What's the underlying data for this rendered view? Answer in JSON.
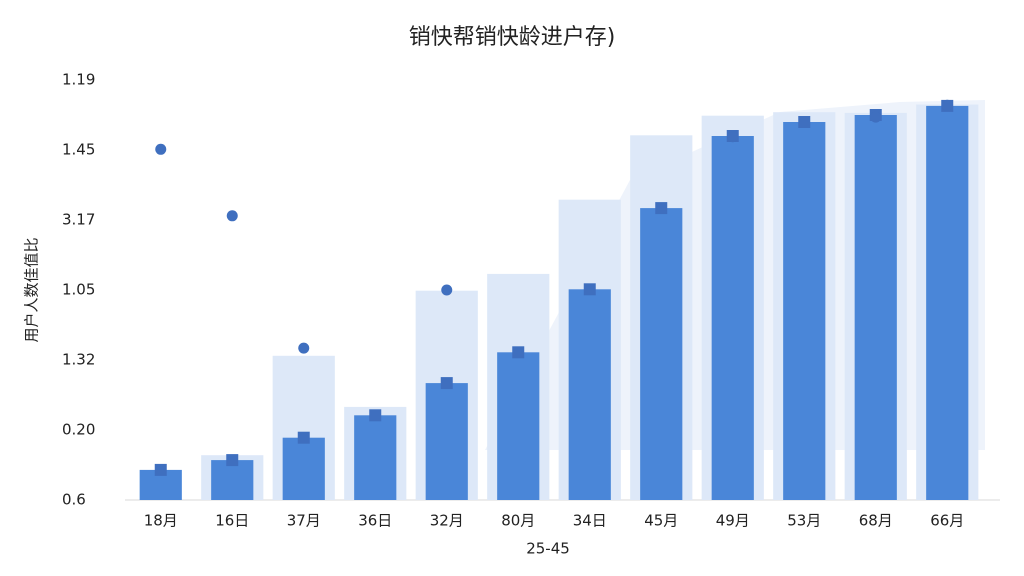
{
  "chart_data": {
    "type": "bar",
    "title": "销快帮销快龄进户存)",
    "x_label": "25-45",
    "y_label": "用户人数佳值比",
    "categories": [
      "18月",
      "16日",
      "37月",
      "36日",
      "32月",
      "80月",
      "34日",
      "45月",
      "49月",
      "53月",
      "68月",
      "66月"
    ],
    "series": [
      {
        "color": "#dde8f8",
        "values": [
          null,
          0.64,
          2.06,
          1.33,
          2.99,
          3.23,
          4.29,
          5.21,
          5.49,
          5.54,
          5.53,
          5.65
        ]
      },
      {
        "color": "#4a86d8",
        "values": [
          0.43,
          0.57,
          0.89,
          1.21,
          1.67,
          2.11,
          3.01,
          4.17,
          5.2,
          5.4,
          5.5,
          5.63
        ]
      },
      {
        "color": "#3f6fbf",
        "marker": true,
        "values": [
          5.01,
          4.06,
          2.17,
          null,
          3.0,
          null,
          null,
          null,
          5.19,
          null,
          5.47,
          5.64
        ]
      }
    ],
    "ylim": [
      0,
      6
    ],
    "yticks": [
      {
        "value": 0,
        "label": "0.6"
      },
      {
        "value": 1,
        "label": "0.20"
      },
      {
        "value": 2,
        "label": "1.32"
      },
      {
        "value": 3,
        "label": "1.05"
      },
      {
        "value": 4,
        "label": "3.17"
      },
      {
        "value": 5,
        "label": "1.45"
      },
      {
        "value": 6,
        "label": "1.19"
      }
    ],
    "grid": false
  }
}
